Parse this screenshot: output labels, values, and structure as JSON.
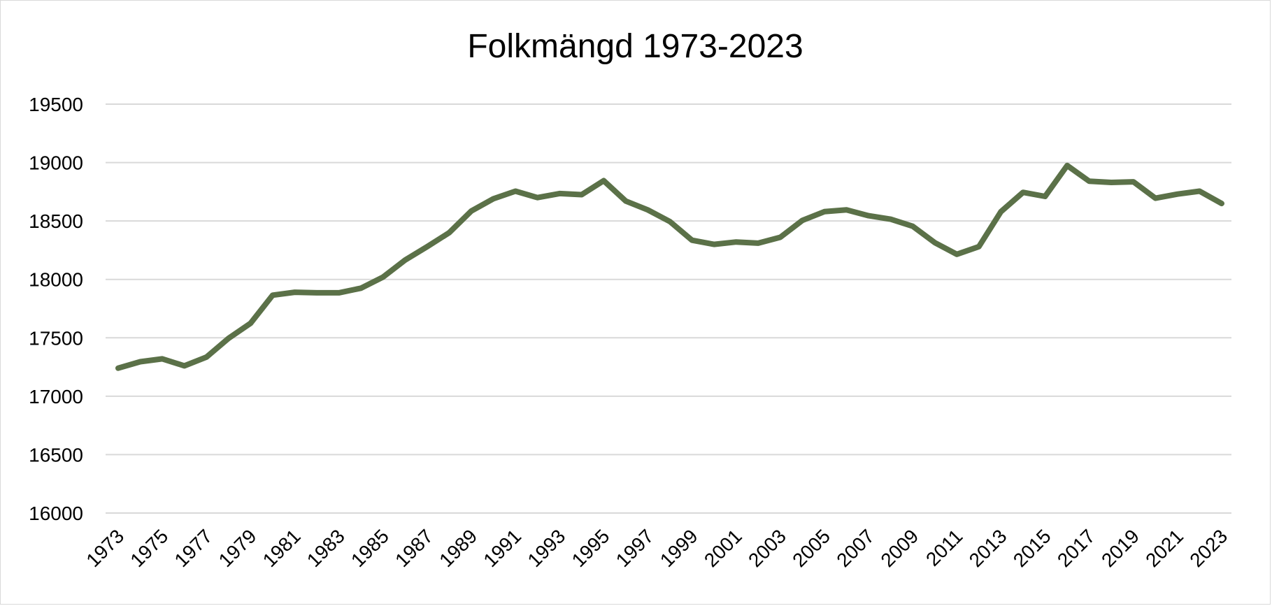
{
  "chart_data": {
    "type": "line",
    "title": "Folkmängd 1973-2023",
    "xlabel": "",
    "ylabel": "",
    "ylim": [
      16000,
      19500
    ],
    "ytick_step": 500,
    "grid": true,
    "legend": "none",
    "line_color": "#5b7148",
    "x": [
      1973,
      1974,
      1975,
      1976,
      1977,
      1978,
      1979,
      1980,
      1981,
      1982,
      1983,
      1984,
      1985,
      1986,
      1987,
      1988,
      1989,
      1990,
      1991,
      1992,
      1993,
      1994,
      1995,
      1996,
      1997,
      1998,
      1999,
      2000,
      2001,
      2002,
      2003,
      2004,
      2005,
      2006,
      2007,
      2008,
      2009,
      2010,
      2011,
      2012,
      2013,
      2014,
      2015,
      2016,
      2017,
      2018,
      2019,
      2020,
      2021,
      2022,
      2023
    ],
    "x_tick_labels": [
      "1973",
      "1975",
      "1977",
      "1979",
      "1981",
      "1983",
      "1985",
      "1987",
      "1989",
      "1991",
      "1993",
      "1995",
      "1997",
      "1999",
      "2001",
      "2003",
      "2005",
      "2007",
      "2009",
      "2011",
      "2013",
      "2015",
      "2017",
      "2019",
      "2021",
      "2023"
    ],
    "y_tick_labels": [
      "16000",
      "16500",
      "17000",
      "17500",
      "18000",
      "18500",
      "19000",
      "19500"
    ],
    "series": [
      {
        "values": [
          17240,
          17295,
          17320,
          17260,
          17335,
          17495,
          17625,
          17865,
          17890,
          17885,
          17885,
          17925,
          18020,
          18165,
          18280,
          18400,
          18585,
          18690,
          18755,
          18700,
          18735,
          18725,
          18845,
          18670,
          18595,
          18495,
          18335,
          18300,
          18320,
          18310,
          18360,
          18505,
          18580,
          18595,
          18545,
          18515,
          18455,
          18315,
          18215,
          18280,
          18580,
          18745,
          18710,
          18975,
          18840,
          18830,
          18835,
          18695,
          18730,
          18755,
          18650
        ]
      }
    ]
  }
}
